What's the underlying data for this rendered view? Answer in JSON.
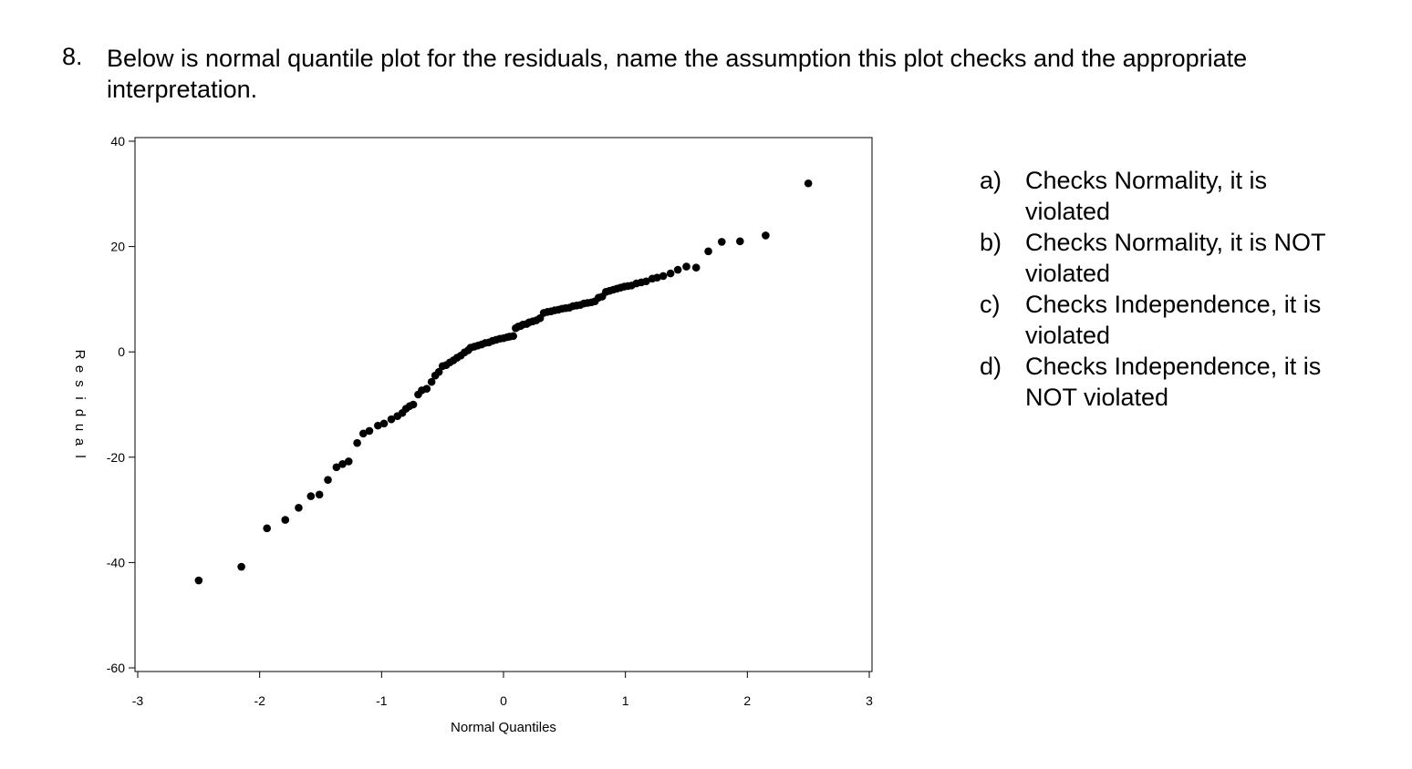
{
  "question": {
    "number": "8.",
    "text": "Below is normal quantile plot for the residuals, name the assumption this plot checks and the appropriate interpretation."
  },
  "options": [
    {
      "letter": "a)",
      "text": "Checks Normality, it is violated"
    },
    {
      "letter": "b)",
      "text": "Checks Normality, it is NOT violated"
    },
    {
      "letter": "c)",
      "text": "Checks Independence, it is violated"
    },
    {
      "letter": "d)",
      "text": "Checks Independence, it is NOT violated"
    }
  ],
  "chart_data": {
    "type": "scatter",
    "title": "",
    "xlabel": "Normal Quantiles",
    "ylabel": "Residual",
    "xlim": [
      -3,
      3
    ],
    "ylim": [
      -60,
      40
    ],
    "xticks": [
      "-3",
      "-2",
      "-1",
      "0",
      "1",
      "2",
      "3"
    ],
    "yticks": [
      "40",
      "20",
      "0",
      "-20",
      "-40",
      "-60"
    ],
    "grid": false,
    "legend": "none",
    "marker_color": "#000000",
    "points": [
      [
        -2.5,
        -43.4
      ],
      [
        -2.15,
        -40.8
      ],
      [
        -1.94,
        -33.5
      ],
      [
        -1.79,
        -31.9
      ],
      [
        -1.68,
        -29.6
      ],
      [
        -1.58,
        -27.4
      ],
      [
        -1.51,
        -27.1
      ],
      [
        -1.44,
        -24.3
      ],
      [
        -1.37,
        -21.9
      ],
      [
        -1.32,
        -21.3
      ],
      [
        -1.27,
        -20.8
      ],
      [
        -1.2,
        -17.3
      ],
      [
        -1.15,
        -15.5
      ],
      [
        -1.1,
        -15.0
      ],
      [
        -1.03,
        -14.0
      ],
      [
        -0.98,
        -13.6
      ],
      [
        -0.92,
        -12.8
      ],
      [
        -0.87,
        -12.2
      ],
      [
        -0.83,
        -11.6
      ],
      [
        -0.8,
        -10.8
      ],
      [
        -0.77,
        -10.3
      ],
      [
        -0.74,
        -10.0
      ],
      [
        -0.7,
        -8.1
      ],
      [
        -0.67,
        -7.3
      ],
      [
        -0.63,
        -7.0
      ],
      [
        -0.59,
        -5.7
      ],
      [
        -0.56,
        -4.5
      ],
      [
        -0.53,
        -3.8
      ],
      [
        -0.5,
        -2.7
      ],
      [
        -0.47,
        -2.5
      ],
      [
        -0.44,
        -2.0
      ],
      [
        -0.41,
        -1.6
      ],
      [
        -0.38,
        -1.1
      ],
      [
        -0.35,
        -0.7
      ],
      [
        -0.32,
        -0.1
      ],
      [
        -0.29,
        0.3
      ],
      [
        -0.27,
        0.8
      ],
      [
        -0.24,
        1.0
      ],
      [
        -0.21,
        1.2
      ],
      [
        -0.18,
        1.4
      ],
      [
        -0.15,
        1.7
      ],
      [
        -0.12,
        1.8
      ],
      [
        -0.09,
        2.1
      ],
      [
        -0.06,
        2.3
      ],
      [
        -0.03,
        2.5
      ],
      [
        0.0,
        2.6
      ],
      [
        0.03,
        2.8
      ],
      [
        0.05,
        2.9
      ],
      [
        0.08,
        3.0
      ],
      [
        0.1,
        4.5
      ],
      [
        0.12,
        4.8
      ],
      [
        0.14,
        4.9
      ],
      [
        0.16,
        5.2
      ],
      [
        0.19,
        5.3
      ],
      [
        0.21,
        5.6
      ],
      [
        0.24,
        5.8
      ],
      [
        0.27,
        6.0
      ],
      [
        0.3,
        6.4
      ],
      [
        0.33,
        7.4
      ],
      [
        0.36,
        7.6
      ],
      [
        0.39,
        7.7
      ],
      [
        0.42,
        7.9
      ],
      [
        0.45,
        8.0
      ],
      [
        0.48,
        8.2
      ],
      [
        0.51,
        8.3
      ],
      [
        0.54,
        8.4
      ],
      [
        0.57,
        8.7
      ],
      [
        0.6,
        8.8
      ],
      [
        0.63,
        8.9
      ],
      [
        0.66,
        9.2
      ],
      [
        0.69,
        9.3
      ],
      [
        0.72,
        9.4
      ],
      [
        0.75,
        9.6
      ],
      [
        0.78,
        10.3
      ],
      [
        0.81,
        10.5
      ],
      [
        0.84,
        11.4
      ],
      [
        0.87,
        11.6
      ],
      [
        0.9,
        11.8
      ],
      [
        0.93,
        12.0
      ],
      [
        0.96,
        12.2
      ],
      [
        0.99,
        12.4
      ],
      [
        1.02,
        12.5
      ],
      [
        1.05,
        12.6
      ],
      [
        1.09,
        13.0
      ],
      [
        1.13,
        13.2
      ],
      [
        1.17,
        13.4
      ],
      [
        1.22,
        13.9
      ],
      [
        1.26,
        14.1
      ],
      [
        1.31,
        14.4
      ],
      [
        1.37,
        14.9
      ],
      [
        1.43,
        15.6
      ],
      [
        1.5,
        16.2
      ],
      [
        1.58,
        16.0
      ],
      [
        1.68,
        19.1
      ],
      [
        1.79,
        20.9
      ],
      [
        1.94,
        21.0
      ],
      [
        2.15,
        22.1
      ],
      [
        2.5,
        32.0
      ]
    ]
  }
}
